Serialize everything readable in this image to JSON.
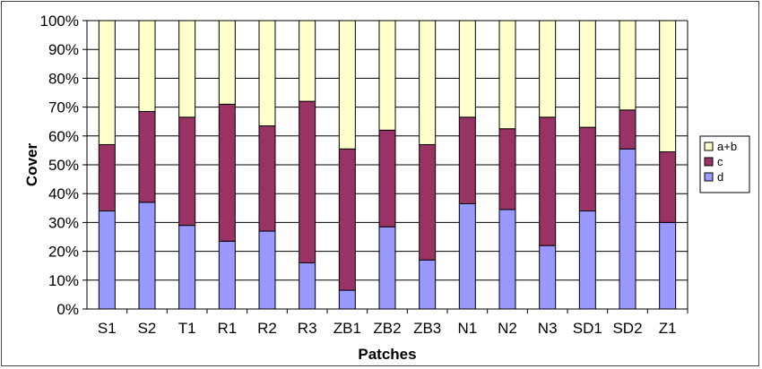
{
  "chart_data": {
    "type": "bar",
    "stacked": true,
    "percent": true,
    "title": "",
    "xlabel": "Patches",
    "ylabel": "Cover",
    "ylim": [
      0,
      100
    ],
    "yticks": [
      "0%",
      "10%",
      "20%",
      "30%",
      "40%",
      "50%",
      "60%",
      "70%",
      "80%",
      "90%",
      "100%"
    ],
    "categories": [
      "S1",
      "S2",
      "T1",
      "R1",
      "R2",
      "R3",
      "ZB1",
      "ZB2",
      "ZB3",
      "N1",
      "N2",
      "N3",
      "SD1",
      "SD2",
      "Z1"
    ],
    "series": [
      {
        "name": "d",
        "color": "#9999ff",
        "values": [
          34,
          37,
          29,
          23.5,
          27,
          16,
          6.5,
          28.5,
          17,
          36.5,
          34.5,
          22,
          34,
          55.5,
          30
        ]
      },
      {
        "name": "c",
        "color": "#993366",
        "values": [
          23,
          31.5,
          37.5,
          47.5,
          36.5,
          56,
          49,
          33.5,
          40,
          30,
          28,
          44.5,
          29,
          13.5,
          24.5
        ]
      },
      {
        "name": "a+b",
        "color": "#ffffcc",
        "values": [
          43,
          31.5,
          33.5,
          29,
          36.5,
          28,
          44.5,
          38,
          43,
          33.5,
          37.5,
          33.5,
          37,
          31,
          45.5
        ]
      }
    ],
    "legend": {
      "position": "right",
      "order": [
        "a+b",
        "c",
        "d"
      ]
    },
    "grid": {
      "y": true,
      "x": false
    }
  }
}
